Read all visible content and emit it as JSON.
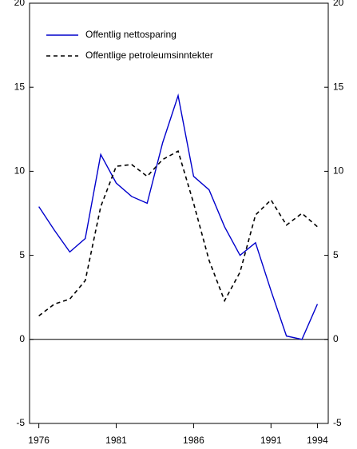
{
  "chart_data": {
    "type": "line",
    "x": [
      1976,
      1977,
      1978,
      1979,
      1980,
      1981,
      1982,
      1983,
      1984,
      1985,
      1986,
      1987,
      1988,
      1989,
      1990,
      1991,
      1992,
      1993,
      1994
    ],
    "series": [
      {
        "name": "Offentlig nettosparing",
        "color": "#0000cc",
        "dash": false,
        "values": [
          7.9,
          6.5,
          5.2,
          6.0,
          11.0,
          9.3,
          8.5,
          8.1,
          11.7,
          14.5,
          9.7,
          8.9,
          6.7,
          5.0,
          5.75,
          2.9,
          0.2,
          0.0,
          2.1
        ]
      },
      {
        "name": "Offentlige petroleumsinntekter",
        "color": "#000000",
        "dash": true,
        "values": [
          1.4,
          2.1,
          2.4,
          3.5,
          7.9,
          10.3,
          10.4,
          9.7,
          10.7,
          11.2,
          8.1,
          4.7,
          2.3,
          4.0,
          7.4,
          8.3,
          6.8,
          7.5,
          6.7
        ]
      }
    ],
    "xlim": [
      1975.4,
      1994.7
    ],
    "xticks": [
      1976,
      1981,
      1986,
      1991,
      1994
    ],
    "ylim": [
      -5,
      20
    ],
    "yticks": [
      -5,
      0,
      5,
      10,
      15,
      20
    ],
    "y2lim": [
      -5,
      20
    ],
    "y2ticks": [
      -5,
      0,
      5,
      10,
      15,
      20
    ],
    "zero_line": true,
    "legend": "upper left"
  }
}
